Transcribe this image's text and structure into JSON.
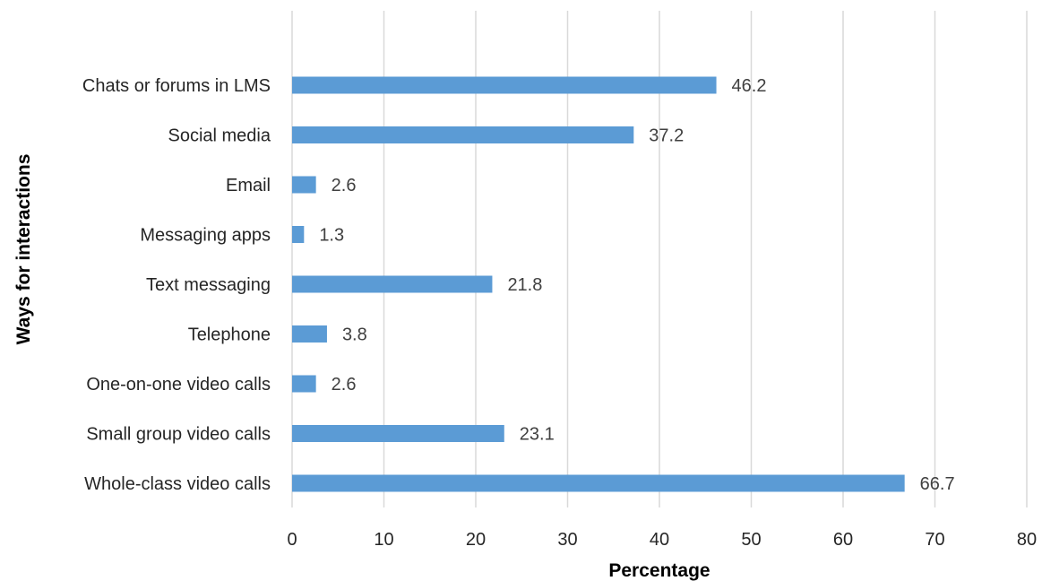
{
  "chart_data": {
    "type": "bar",
    "orientation": "horizontal",
    "title": "",
    "xlabel": "Percentage",
    "ylabel": "Ways for interactions",
    "xlim": [
      0,
      80
    ],
    "x_ticks": [
      0,
      10,
      20,
      30,
      40,
      50,
      60,
      70,
      80
    ],
    "grid": "vertical major gridlines",
    "legend": "none",
    "bar_color": "#5B9BD5",
    "grid_color": "#D9D9D9",
    "categories": [
      "Chats or forums in LMS",
      "Social media",
      "Email",
      "Messaging apps",
      "Text messaging",
      "Telephone",
      "One-on-one video calls",
      "Small group video calls",
      "Whole-class video calls"
    ],
    "values": [
      46.2,
      37.2,
      2.6,
      1.3,
      21.8,
      3.8,
      2.6,
      23.1,
      66.7
    ],
    "data_labels": [
      "46.2",
      "37.2",
      "2.6",
      "1.3",
      "21.8",
      "3.8",
      "2.6",
      "23.1",
      "66.7"
    ]
  }
}
